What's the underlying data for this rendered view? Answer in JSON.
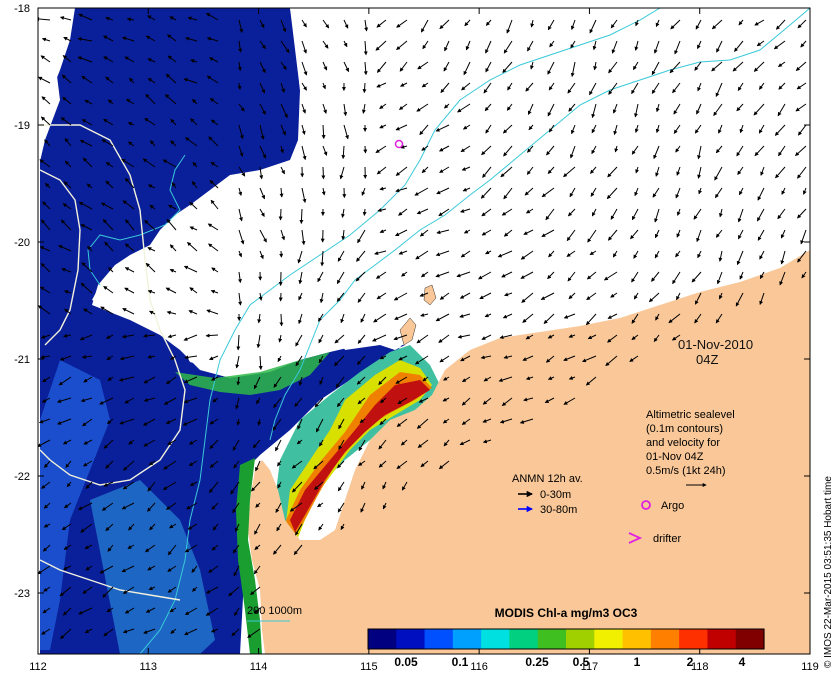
{
  "map": {
    "date": "01-Nov-2010",
    "time": "04Z",
    "lon_ticks": [
      "112",
      "113",
      "114",
      "115",
      "116",
      "117",
      "118",
      "119"
    ],
    "lat_ticks": [
      "-18",
      "-19",
      "-20",
      "-21",
      "-22",
      "-23"
    ],
    "credit": "© IMOS 22-Mar-2015 03:51:35 Hobart time",
    "colors": {
      "land": "#fac898",
      "cloud": "#ffffff",
      "bathy": "#39c9d9",
      "contour": "#f2f2dc",
      "argo": "#e020e0"
    }
  },
  "altimetry_legend": {
    "lines": [
      "Altimetric sealevel",
      "(0.1m contours)",
      "and velocity for",
      "01-Nov 04Z"
    ],
    "scale_label": "0.5m/s (1kt 24h)"
  },
  "anmn_legend": {
    "title": "ANMN 12h av.",
    "items": [
      {
        "label": "0-30m",
        "color": "#000000"
      },
      {
        "label": "30-80m",
        "color": "#0000ff"
      }
    ]
  },
  "markers": {
    "argo_label": "Argo",
    "drifter_label": "drifter"
  },
  "bathy_legend": {
    "label": "200  1000m"
  },
  "colorbar": {
    "title": "MODIS Chl-a mg/m3 OC3",
    "ticks": [
      "0.05",
      "0.1",
      "0.25",
      "0.5",
      "1",
      "2",
      "4"
    ],
    "colors": [
      "#000080",
      "#0010c0",
      "#0050ff",
      "#00a0ff",
      "#00e0e0",
      "#00d080",
      "#40c020",
      "#a0d000",
      "#f0f000",
      "#ffc000",
      "#ff8000",
      "#ff3000",
      "#c00000",
      "#800000"
    ]
  }
}
